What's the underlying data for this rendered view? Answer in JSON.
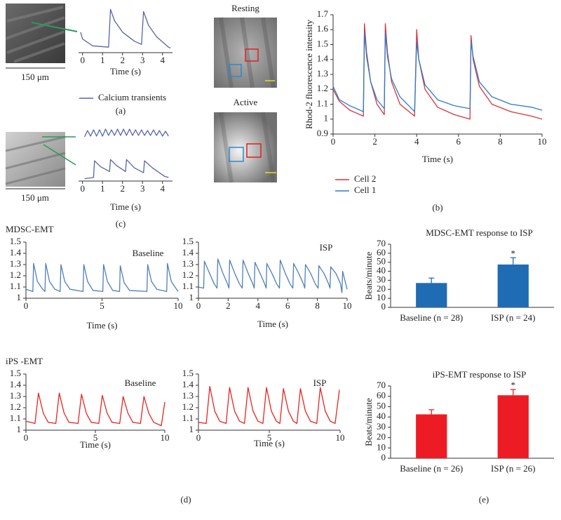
{
  "figure": {
    "panel_a": "(a)",
    "panel_b": "(b)",
    "panel_c": "(c)",
    "panel_d": "(d)",
    "panel_e": "(e)",
    "scale_a": "150 μm",
    "scale_c": "150 μm",
    "resting": "Resting",
    "active": "Active",
    "mdsc_label": "MDSC-EMT",
    "ips_label": "iPS -EMT"
  },
  "chart_data": [
    {
      "type": "line",
      "xlabel": "Time (s)",
      "xlim": [
        -0.2,
        4.5
      ],
      "xticks": [
        0,
        1,
        2,
        3,
        4
      ],
      "ylim": [
        0,
        1
      ],
      "x": [
        -0.1,
        0,
        0.5,
        1.3,
        1.4,
        1.6,
        2.0,
        2.6,
        2.95,
        3.05,
        3.3,
        3.7,
        4.3,
        4.4
      ],
      "series": [
        {
          "name": "Calcium transients",
          "color": "#5a63a8",
          "values": [
            0.45,
            0.3,
            0.15,
            0.12,
            0.95,
            0.7,
            0.45,
            0.25,
            0.18,
            0.9,
            0.6,
            0.35,
            0.12,
            0.1
          ]
        }
      ]
    },
    {
      "type": "line",
      "xlim": [
        -0.2,
        4.5
      ],
      "ylim": [
        0,
        1
      ],
      "color": "#5a63a8",
      "x": [
        0.1,
        0.25,
        0.4,
        0.55,
        0.7,
        0.85,
        1.0,
        1.15,
        1.3,
        1.45,
        1.6,
        1.75,
        1.9,
        2.05,
        2.2,
        2.35,
        2.5,
        2.65,
        2.8,
        2.95,
        3.1,
        3.25,
        3.4,
        3.55,
        3.7,
        3.85,
        4.0,
        4.15,
        4.3
      ],
      "values": [
        0.35,
        0.8,
        0.4,
        0.85,
        0.4,
        0.85,
        0.4,
        0.9,
        0.45,
        0.85,
        0.45,
        0.9,
        0.45,
        0.9,
        0.45,
        0.9,
        0.45,
        0.85,
        0.45,
        0.85,
        0.45,
        0.8,
        0.45,
        0.85,
        0.45,
        0.8,
        0.4,
        0.75,
        0.4
      ]
    },
    {
      "type": "line",
      "xlabel": "Time (s)",
      "xlim": [
        -0.2,
        4.5
      ],
      "xticks": [
        0,
        1,
        2,
        3,
        4
      ],
      "ylim": [
        0,
        1
      ],
      "color": "#5a63a8",
      "x": [
        0.1,
        0.55,
        0.6,
        0.9,
        1.35,
        1.4,
        1.7,
        2.15,
        2.2,
        2.6,
        3.05,
        3.1,
        3.5,
        4.1,
        4.3
      ],
      "values": [
        0.1,
        0.15,
        0.85,
        0.6,
        0.4,
        0.9,
        0.65,
        0.4,
        0.9,
        0.55,
        0.35,
        0.85,
        0.55,
        0.2,
        0.15
      ]
    },
    {
      "type": "line",
      "xlabel": "Time (s)",
      "ylabel": "Rhod-2 fluorescence intensity",
      "xlim": [
        0,
        10
      ],
      "xticks": [
        0,
        2,
        4,
        6,
        8,
        10
      ],
      "ylim": [
        0.9,
        1.7
      ],
      "yticks": [
        0.9,
        1,
        1.1,
        1.2,
        1.3,
        1.4,
        1.5,
        1.6,
        1.7
      ],
      "x": [
        0,
        0.3,
        0.8,
        1.45,
        1.5,
        1.6,
        1.8,
        2.1,
        2.45,
        2.5,
        2.6,
        2.8,
        3.2,
        3.9,
        4.0,
        4.1,
        4.4,
        5.0,
        5.8,
        6.55,
        6.6,
        6.7,
        7.0,
        7.6,
        8.5,
        9.5,
        10
      ],
      "series": [
        {
          "name": "Cell 2",
          "color": "#d9343c",
          "values": [
            1.2,
            1.12,
            1.06,
            1.02,
            1.64,
            1.45,
            1.25,
            1.1,
            1.03,
            1.64,
            1.45,
            1.25,
            1.1,
            1.02,
            1.6,
            1.4,
            1.2,
            1.08,
            1.03,
            1.0,
            1.56,
            1.4,
            1.22,
            1.1,
            1.05,
            1.02,
            1.0
          ]
        },
        {
          "name": "Cell 1",
          "color": "#2f7cc4",
          "values": [
            1.22,
            1.13,
            1.09,
            1.05,
            1.58,
            1.42,
            1.25,
            1.13,
            1.07,
            1.58,
            1.42,
            1.27,
            1.15,
            1.05,
            1.52,
            1.4,
            1.23,
            1.13,
            1.09,
            1.07,
            1.52,
            1.42,
            1.25,
            1.15,
            1.1,
            1.08,
            1.06
          ]
        }
      ]
    },
    {
      "type": "line",
      "xlabel": "Time (s)",
      "annotation": "Baseline",
      "color": "#4f7fb8",
      "xlim": [
        0,
        10
      ],
      "xticks": [
        0,
        5,
        10
      ],
      "ylim": [
        1,
        1.5
      ],
      "yticks": [
        1,
        1.1,
        1.2,
        1.3,
        1.4,
        1.5
      ],
      "x": [
        0,
        0.45,
        0.5,
        0.75,
        1.1,
        1.25,
        1.3,
        1.55,
        1.9,
        2.25,
        2.3,
        2.55,
        2.9,
        3.75,
        3.8,
        4.05,
        4.4,
        5.05,
        5.1,
        5.35,
        5.7,
        6.15,
        6.2,
        6.45,
        6.8,
        7.95,
        8.0,
        8.25,
        8.6,
        9.25,
        9.3,
        9.55,
        9.9,
        10
      ],
      "values": [
        1.08,
        1.06,
        1.31,
        1.15,
        1.08,
        1.06,
        1.31,
        1.15,
        1.08,
        1.06,
        1.3,
        1.15,
        1.08,
        1.06,
        1.3,
        1.15,
        1.07,
        1.06,
        1.3,
        1.15,
        1.07,
        1.06,
        1.29,
        1.14,
        1.07,
        1.06,
        1.3,
        1.15,
        1.08,
        1.06,
        1.31,
        1.15,
        1.08,
        1.06
      ]
    },
    {
      "type": "line",
      "xlabel": "Time (s)",
      "annotation": "ISP",
      "color": "#4f7fb8",
      "xlim": [
        0,
        10
      ],
      "xticks": [
        0,
        2,
        4,
        6,
        8,
        10
      ],
      "ylim": [
        1,
        1.5
      ],
      "yticks": [
        1,
        1.1,
        1.2,
        1.3,
        1.4,
        1.5
      ],
      "x": [
        0,
        0.35,
        0.4,
        0.75,
        1.05,
        1.25,
        1.3,
        1.65,
        1.95,
        2.05,
        2.1,
        2.45,
        2.75,
        2.95,
        3.0,
        3.35,
        3.65,
        3.75,
        3.8,
        4.15,
        4.45,
        4.55,
        4.6,
        4.95,
        5.25,
        5.45,
        5.5,
        5.85,
        6.15,
        6.35,
        6.4,
        6.75,
        7.05,
        7.15,
        7.2,
        7.55,
        7.85,
        8.05,
        8.1,
        8.45,
        8.75,
        8.85,
        8.9,
        9.25,
        9.55,
        9.65,
        9.7,
        10
      ],
      "values": [
        1.1,
        1.09,
        1.33,
        1.22,
        1.13,
        1.09,
        1.35,
        1.22,
        1.13,
        1.09,
        1.34,
        1.22,
        1.13,
        1.09,
        1.34,
        1.22,
        1.13,
        1.09,
        1.32,
        1.22,
        1.13,
        1.09,
        1.31,
        1.22,
        1.13,
        1.09,
        1.34,
        1.22,
        1.13,
        1.09,
        1.31,
        1.22,
        1.13,
        1.09,
        1.3,
        1.22,
        1.13,
        1.09,
        1.29,
        1.22,
        1.13,
        1.09,
        1.28,
        1.22,
        1.13,
        1.05,
        1.24,
        1.08
      ]
    },
    {
      "type": "line",
      "xlabel": "Time (s)",
      "annotation": "Baseline",
      "color": "#e52520",
      "xlim": [
        0,
        10
      ],
      "xticks": [
        0,
        5,
        10
      ],
      "ylim": [
        1,
        1.5
      ],
      "yticks": [
        1,
        1.1,
        1.2,
        1.3,
        1.4,
        1.5
      ],
      "x": [
        0,
        0.65,
        0.9,
        1.25,
        1.6,
        2.15,
        2.4,
        2.75,
        3.1,
        3.75,
        4.0,
        4.35,
        4.7,
        5.25,
        5.5,
        5.85,
        6.2,
        6.75,
        7.0,
        7.35,
        7.7,
        8.25,
        8.5,
        8.85,
        9.2,
        9.75,
        10
      ],
      "values": [
        1.08,
        1.06,
        1.33,
        1.15,
        1.07,
        1.06,
        1.33,
        1.15,
        1.07,
        1.06,
        1.32,
        1.15,
        1.07,
        1.06,
        1.31,
        1.15,
        1.07,
        1.06,
        1.3,
        1.15,
        1.07,
        1.06,
        1.3,
        1.15,
        1.07,
        1.04,
        1.25
      ]
    },
    {
      "type": "line",
      "xlabel": "Time (s)",
      "annotation": "ISP",
      "color": "#e52520",
      "xlim": [
        0,
        10
      ],
      "xticks": [
        0,
        5,
        10
      ],
      "ylim": [
        1,
        1.5
      ],
      "yticks": [
        1,
        1.1,
        1.2,
        1.3,
        1.4,
        1.5
      ],
      "x": [
        0,
        0.55,
        0.8,
        1.15,
        1.5,
        1.95,
        2.2,
        2.55,
        2.9,
        3.25,
        3.5,
        3.85,
        4.2,
        4.55,
        4.8,
        5.15,
        5.5,
        5.75,
        6.0,
        6.35,
        6.7,
        6.95,
        7.2,
        7.55,
        7.9,
        8.35,
        8.6,
        8.95,
        9.3,
        9.65,
        9.95
      ],
      "values": [
        1.07,
        1.06,
        1.39,
        1.17,
        1.08,
        1.06,
        1.38,
        1.17,
        1.08,
        1.06,
        1.38,
        1.17,
        1.08,
        1.06,
        1.38,
        1.17,
        1.08,
        1.06,
        1.37,
        1.17,
        1.08,
        1.06,
        1.37,
        1.17,
        1.08,
        1.06,
        1.38,
        1.17,
        1.08,
        1.06,
        1.36
      ]
    },
    {
      "type": "bar",
      "title": "MDSC-EMT response to ISP",
      "ylabel": "Beats/minute",
      "color": "#1f6cb5",
      "categories": [
        "Baseline (n = 28)",
        "ISP (n = 24)"
      ],
      "values": [
        27,
        47.5
      ],
      "errors": [
        5.5,
        7.5
      ],
      "significance": [
        null,
        "*"
      ],
      "ylim": [
        0,
        70
      ],
      "yticks": [
        0,
        10,
        20,
        30,
        40,
        50,
        60,
        70
      ]
    },
    {
      "type": "bar",
      "title": "iPS-EMT response to ISP",
      "ylabel": "Beats/minute",
      "color": "#ed1c24",
      "categories": [
        "Baseline (n = 26)",
        "ISP (n = 26)"
      ],
      "values": [
        42.5,
        61
      ],
      "errors": [
        4.5,
        5.5
      ],
      "significance": [
        null,
        "*"
      ],
      "ylim": [
        0,
        70
      ],
      "yticks": [
        0,
        10,
        20,
        30,
        40,
        50,
        60,
        70
      ]
    }
  ]
}
